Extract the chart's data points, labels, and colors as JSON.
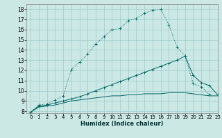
{
  "title": "",
  "xlabel": "Humidex (Indice chaleur)",
  "bg_color": "#cce8e4",
  "grid_color": "#99cccc",
  "line_color": "#006666",
  "xlim": [
    -0.5,
    23
  ],
  "ylim": [
    7.8,
    18.5
  ],
  "xticks": [
    0,
    1,
    2,
    3,
    4,
    5,
    6,
    7,
    8,
    9,
    10,
    11,
    12,
    13,
    14,
    15,
    16,
    17,
    18,
    19,
    20,
    21,
    22,
    23
  ],
  "yticks": [
    8,
    9,
    10,
    11,
    12,
    13,
    14,
    15,
    16,
    17,
    18
  ],
  "curve1_x": [
    0,
    1,
    2,
    3,
    4,
    5,
    6,
    7,
    8,
    9,
    10,
    11,
    12,
    13,
    14,
    15,
    16,
    17,
    18,
    19,
    20,
    21,
    22
  ],
  "curve1_y": [
    7.9,
    8.6,
    8.7,
    9.1,
    9.5,
    12.1,
    12.8,
    13.6,
    14.6,
    15.3,
    16.0,
    16.1,
    16.9,
    17.1,
    17.6,
    17.9,
    18.0,
    16.5,
    14.3,
    13.4,
    10.7,
    10.4,
    9.6
  ],
  "curve2_x": [
    0,
    1,
    2,
    3,
    4,
    5,
    6,
    7,
    8,
    9,
    10,
    11,
    12,
    13,
    14,
    15,
    16,
    17,
    18,
    19,
    20,
    21,
    22,
    23
  ],
  "curve2_y": [
    7.9,
    8.5,
    8.6,
    8.8,
    9.0,
    9.2,
    9.4,
    9.7,
    10.0,
    10.3,
    10.6,
    10.9,
    11.2,
    11.5,
    11.8,
    12.1,
    12.4,
    12.7,
    13.0,
    13.4,
    11.5,
    10.8,
    10.5,
    9.6
  ],
  "curve3_x": [
    0,
    1,
    2,
    3,
    4,
    5,
    6,
    7,
    8,
    9,
    10,
    11,
    12,
    13,
    14,
    15,
    16,
    17,
    18,
    19,
    20,
    21,
    22,
    23
  ],
  "curve3_y": [
    7.9,
    8.4,
    8.5,
    8.6,
    8.8,
    9.0,
    9.1,
    9.2,
    9.3,
    9.4,
    9.5,
    9.5,
    9.6,
    9.6,
    9.7,
    9.7,
    9.7,
    9.8,
    9.8,
    9.8,
    9.7,
    9.6,
    9.5,
    9.5
  ],
  "xticklabel_fontsize": 5.0,
  "yticklabel_fontsize": 5.5,
  "xlabel_fontsize": 6.0
}
